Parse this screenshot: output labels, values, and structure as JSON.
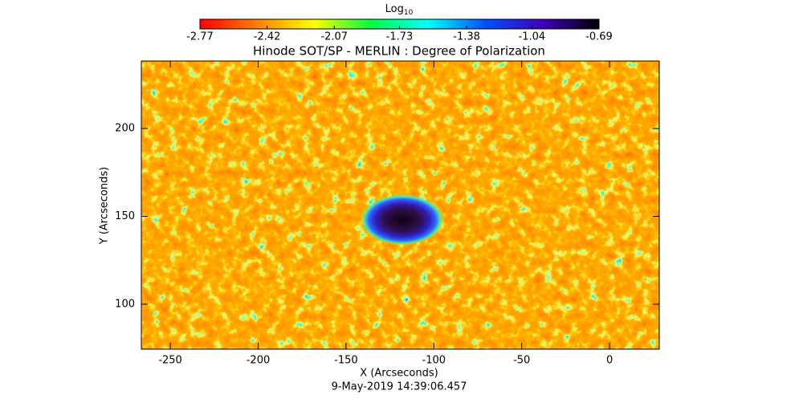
{
  "chart_data": {
    "type": "image",
    "title": "Hinode SOT/SP - MERLIN : Degree of Polarization",
    "colorbar_label": "Log",
    "colorbar_label_sub": "10",
    "colorbar_lim": [
      -2.77,
      -0.69
    ],
    "colorbar_ticks": [
      -2.77,
      -2.42,
      -2.07,
      -1.73,
      -1.38,
      -1.04,
      -0.69
    ],
    "colormap": [
      "#ff0000",
      "#ff8000",
      "#ffff00",
      "#00ff40",
      "#00ffff",
      "#0050ff",
      "#4000c0",
      "#000000"
    ],
    "x_label": "X (Arcseconds)",
    "y_label": "Y (Arcseconds)",
    "xlim": [
      -266.5,
      28.3
    ],
    "ylim": [
      74.4,
      238.4
    ],
    "xticks": [
      -250,
      -200,
      -150,
      -100,
      -50,
      0
    ],
    "yticks": [
      100,
      150,
      200
    ],
    "timestamp": "9-May-2019 14:39:06.457"
  }
}
